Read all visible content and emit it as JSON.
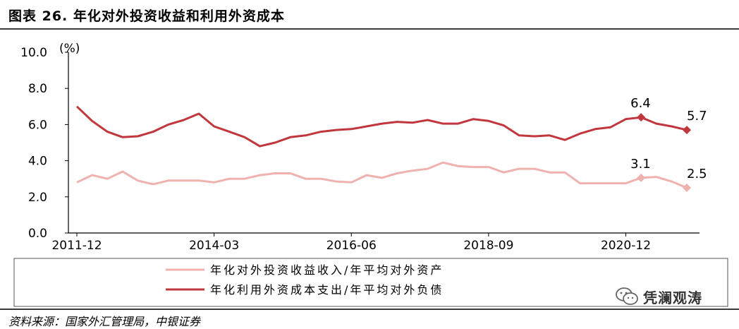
{
  "header": {
    "title": "图表 26. 年化对外投资收益和利用外资成本"
  },
  "footer": {
    "source": "资料来源：国家外汇管理局，中银证券"
  },
  "watermark": {
    "text": "凭澜观涛",
    "icon": "wechat-icon"
  },
  "colors": {
    "line_income": "#f0b2ae",
    "line_cost": "#c1373d",
    "axis": "#000000"
  },
  "chart_data": {
    "type": "line",
    "title": "",
    "xlabel": "",
    "ylabel": "(%)",
    "ylim": [
      0,
      10
    ],
    "yticks": [
      "0.0",
      "2.0",
      "4.0",
      "6.0",
      "8.0",
      "10.0"
    ],
    "x": [
      "2011-12",
      "2012-03",
      "2012-06",
      "2012-09",
      "2012-12",
      "2013-03",
      "2013-06",
      "2013-09",
      "2013-12",
      "2014-03",
      "2014-06",
      "2014-09",
      "2014-12",
      "2015-03",
      "2015-06",
      "2015-09",
      "2015-12",
      "2016-03",
      "2016-06",
      "2016-09",
      "2016-12",
      "2017-03",
      "2017-06",
      "2017-09",
      "2017-12",
      "2018-03",
      "2018-06",
      "2018-09",
      "2018-12",
      "2019-03",
      "2019-06",
      "2019-09",
      "2019-12",
      "2020-03",
      "2020-06",
      "2020-09",
      "2020-12",
      "2021-03",
      "2021-06",
      "2021-09",
      "2021-12"
    ],
    "xticks": [
      "2011-12",
      "2014-03",
      "2016-06",
      "2018-09",
      "2020-12"
    ],
    "series": [
      {
        "name": "年化对外投资收益收入/年平均对外资产",
        "values": [
          2.8,
          3.2,
          3.0,
          3.4,
          2.9,
          2.7,
          2.9,
          2.9,
          2.9,
          2.8,
          3.0,
          3.0,
          3.2,
          3.3,
          3.3,
          3.0,
          3.0,
          2.85,
          2.8,
          3.2,
          3.05,
          3.3,
          3.45,
          3.55,
          3.9,
          3.7,
          3.65,
          3.65,
          3.35,
          3.55,
          3.55,
          3.35,
          3.35,
          2.75,
          2.75,
          2.75,
          2.75,
          3.05,
          3.1,
          2.85,
          2.5
        ]
      },
      {
        "name": "年化利用外资成本支出/年平均对外负债",
        "values": [
          7.0,
          6.2,
          5.6,
          5.3,
          5.35,
          5.6,
          6.0,
          6.25,
          6.6,
          5.9,
          5.6,
          5.3,
          4.8,
          5.0,
          5.3,
          5.4,
          5.6,
          5.7,
          5.75,
          5.9,
          6.05,
          6.15,
          6.1,
          6.25,
          6.05,
          6.05,
          6.3,
          6.2,
          5.95,
          5.4,
          5.35,
          5.4,
          5.15,
          5.5,
          5.75,
          5.85,
          6.3,
          6.4,
          6.05,
          5.9,
          5.7
        ]
      }
    ],
    "annotations": [
      {
        "series": 1,
        "index": 37,
        "text": "6.4"
      },
      {
        "series": 1,
        "index": 40,
        "text": "5.7"
      },
      {
        "series": 0,
        "index": 37,
        "text": "3.1"
      },
      {
        "series": 0,
        "index": 40,
        "text": "2.5"
      }
    ],
    "legend": {
      "position": "bottom",
      "items": [
        "年化对外投资收益收入/年平均对外资产",
        "年化利用外资成本支出/年平均对外负债"
      ]
    },
    "grid": false
  }
}
